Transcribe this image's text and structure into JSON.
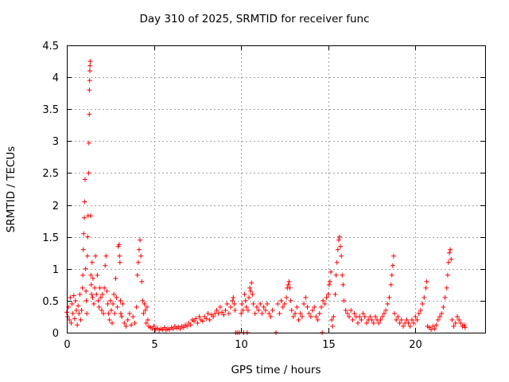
{
  "chart_data": {
    "type": "scatter",
    "title": "Day 310 of 2025, SRMTID for receiver func",
    "xlabel": "GPS time / hours",
    "ylabel": "SRMTID / TECUs",
    "xlim": [
      0,
      24
    ],
    "ylim": [
      0,
      4.5
    ],
    "xticks": [
      0,
      5,
      10,
      15,
      20
    ],
    "yticks": [
      0,
      0.5,
      1,
      1.5,
      2,
      2.5,
      3,
      3.5,
      4,
      4.5
    ],
    "ytick_labels": [
      "0",
      "0.5",
      "1",
      "1.5",
      "2",
      "2.5",
      "3",
      "3.5",
      "4",
      "4.5"
    ],
    "grid": true,
    "marker": "+",
    "color": "#ff0000",
    "series": [
      {
        "name": "SRMTID",
        "points": [
          [
            0.0,
            0.32
          ],
          [
            0.05,
            0.25
          ],
          [
            0.1,
            0.4
          ],
          [
            0.15,
            0.2
          ],
          [
            0.2,
            0.55
          ],
          [
            0.25,
            0.15
          ],
          [
            0.3,
            0.45
          ],
          [
            0.35,
            0.3
          ],
          [
            0.4,
            0.58
          ],
          [
            0.45,
            0.22
          ],
          [
            0.5,
            0.5
          ],
          [
            0.55,
            0.35
          ],
          [
            0.6,
            0.12
          ],
          [
            0.65,
            0.42
          ],
          [
            0.7,
            0.3
          ],
          [
            0.75,
            0.6
          ],
          [
            0.8,
            0.2
          ],
          [
            0.85,
            0.35
          ],
          [
            0.9,
            0.7
          ],
          [
            0.92,
            0.9
          ],
          [
            0.95,
            1.3
          ],
          [
            0.97,
            1.55
          ],
          [
            1.0,
            1.8
          ],
          [
            1.02,
            2.05
          ],
          [
            1.05,
            2.4
          ],
          [
            1.08,
            1.0
          ],
          [
            1.1,
            0.65
          ],
          [
            1.12,
            0.5
          ],
          [
            1.15,
            0.3
          ],
          [
            1.18,
            1.2
          ],
          [
            1.2,
            1.5
          ],
          [
            1.22,
            1.83
          ],
          [
            1.25,
            2.5
          ],
          [
            1.27,
            2.97
          ],
          [
            1.29,
            3.42
          ],
          [
            1.3,
            3.8
          ],
          [
            1.31,
            3.95
          ],
          [
            1.32,
            4.1
          ],
          [
            1.33,
            4.18
          ],
          [
            1.34,
            4.25
          ],
          [
            1.36,
            1.83
          ],
          [
            1.38,
            0.9
          ],
          [
            1.4,
            0.75
          ],
          [
            1.42,
            0.6
          ],
          [
            1.45,
            1.1
          ],
          [
            1.48,
            0.55
          ],
          [
            1.5,
            0.85
          ],
          [
            1.55,
            0.45
          ],
          [
            1.6,
            0.7
          ],
          [
            1.65,
            1.2
          ],
          [
            1.7,
            0.6
          ],
          [
            1.75,
            0.9
          ],
          [
            1.8,
            0.5
          ],
          [
            1.85,
            0.4
          ],
          [
            1.9,
            0.7
          ],
          [
            1.95,
            0.55
          ],
          [
            2.0,
            0.35
          ],
          [
            2.05,
            0.6
          ],
          [
            2.1,
            0.3
          ],
          [
            2.15,
            0.7
          ],
          [
            2.2,
            1.05
          ],
          [
            2.25,
            1.2
          ],
          [
            2.3,
            0.65
          ],
          [
            2.35,
            0.45
          ],
          [
            2.4,
            0.3
          ],
          [
            2.45,
            0.2
          ],
          [
            2.5,
            0.5
          ],
          [
            2.55,
            0.35
          ],
          [
            2.6,
            0.15
          ],
          [
            2.65,
            0.45
          ],
          [
            2.7,
            0.6
          ],
          [
            2.75,
            0.3
          ],
          [
            2.8,
            0.85
          ],
          [
            2.85,
            0.55
          ],
          [
            2.9,
            0.4
          ],
          [
            2.95,
            1.35
          ],
          [
            3.0,
            1.38
          ],
          [
            3.02,
            1.2
          ],
          [
            3.05,
            1.1
          ],
          [
            3.08,
            0.5
          ],
          [
            3.1,
            0.3
          ],
          [
            3.15,
            0.25
          ],
          [
            3.2,
            0.45
          ],
          [
            3.3,
            0.15
          ],
          [
            3.4,
            0.1
          ],
          [
            3.5,
            0.2
          ],
          [
            3.6,
            0.3
          ],
          [
            3.7,
            0.12
          ],
          [
            3.8,
            0.25
          ],
          [
            3.9,
            0.15
          ],
          [
            4.0,
            0.4
          ],
          [
            4.05,
            0.9
          ],
          [
            4.1,
            1.1
          ],
          [
            4.15,
            1.3
          ],
          [
            4.2,
            1.45
          ],
          [
            4.25,
            1.2
          ],
          [
            4.3,
            0.8
          ],
          [
            4.35,
            0.5
          ],
          [
            4.4,
            0.3
          ],
          [
            4.45,
            0.45
          ],
          [
            4.5,
            0.35
          ],
          [
            4.55,
            0.15
          ],
          [
            4.6,
            0.4
          ],
          [
            4.65,
            0.2
          ],
          [
            4.7,
            0.1
          ],
          [
            4.8,
            0.08
          ],
          [
            4.9,
            0.06
          ],
          [
            5.0,
            0.1
          ],
          [
            5.1,
            0.05
          ],
          [
            5.2,
            0.07
          ],
          [
            5.3,
            0.04
          ],
          [
            5.4,
            0.06
          ],
          [
            5.5,
            0.05
          ],
          [
            5.6,
            0.08
          ],
          [
            5.7,
            0.04
          ],
          [
            5.8,
            0.06
          ],
          [
            5.9,
            0.05
          ],
          [
            6.0,
            0.08
          ],
          [
            6.1,
            0.06
          ],
          [
            6.2,
            0.1
          ],
          [
            6.3,
            0.07
          ],
          [
            6.4,
            0.09
          ],
          [
            6.5,
            0.06
          ],
          [
            6.6,
            0.1
          ],
          [
            6.7,
            0.08
          ],
          [
            6.8,
            0.12
          ],
          [
            6.9,
            0.1
          ],
          [
            7.0,
            0.15
          ],
          [
            7.1,
            0.12
          ],
          [
            7.2,
            0.2
          ],
          [
            7.3,
            0.18
          ],
          [
            7.4,
            0.22
          ],
          [
            7.5,
            0.15
          ],
          [
            7.6,
            0.25
          ],
          [
            7.7,
            0.2
          ],
          [
            7.8,
            0.18
          ],
          [
            7.9,
            0.25
          ],
          [
            8.0,
            0.22
          ],
          [
            8.1,
            0.3
          ],
          [
            8.2,
            0.2
          ],
          [
            8.3,
            0.28
          ],
          [
            8.4,
            0.25
          ],
          [
            8.5,
            0.3
          ],
          [
            8.6,
            0.35
          ],
          [
            8.7,
            0.3
          ],
          [
            8.8,
            0.4
          ],
          [
            8.9,
            0.32
          ],
          [
            9.0,
            0.28
          ],
          [
            9.1,
            0.35
          ],
          [
            9.2,
            0.45
          ],
          [
            9.3,
            0.3
          ],
          [
            9.4,
            0.4
          ],
          [
            9.5,
            0.5
          ],
          [
            9.55,
            0.55
          ],
          [
            9.6,
            0.45
          ],
          [
            9.65,
            0.35
          ],
          [
            9.7,
            0.0
          ],
          [
            9.8,
            0.0
          ],
          [
            9.9,
            0.0
          ],
          [
            10.0,
            0.3
          ],
          [
            10.05,
            0.45
          ],
          [
            10.1,
            0.35
          ],
          [
            10.15,
            0.0
          ],
          [
            10.2,
            0.6
          ],
          [
            10.25,
            0.5
          ],
          [
            10.3,
            0.4
          ],
          [
            10.35,
            0.0
          ],
          [
            10.4,
            0.35
          ],
          [
            10.45,
            0.55
          ],
          [
            10.5,
            0.7
          ],
          [
            10.55,
            0.65
          ],
          [
            10.6,
            0.78
          ],
          [
            10.65,
            0.6
          ],
          [
            10.7,
            0.45
          ],
          [
            10.8,
            0.3
          ],
          [
            10.9,
            0.4
          ],
          [
            11.0,
            0.35
          ],
          [
            11.1,
            0.45
          ],
          [
            11.2,
            0.3
          ],
          [
            11.3,
            0.4
          ],
          [
            11.4,
            0.35
          ],
          [
            11.5,
            0.45
          ],
          [
            11.6,
            0.3
          ],
          [
            11.7,
            0.25
          ],
          [
            11.8,
            0.35
          ],
          [
            12.0,
            0.0
          ],
          [
            12.1,
            0.45
          ],
          [
            12.2,
            0.3
          ],
          [
            12.3,
            0.5
          ],
          [
            12.4,
            0.4
          ],
          [
            12.5,
            0.45
          ],
          [
            12.6,
            0.55
          ],
          [
            12.65,
            0.7
          ],
          [
            12.7,
            0.75
          ],
          [
            12.75,
            0.8
          ],
          [
            12.8,
            0.7
          ],
          [
            12.85,
            0.5
          ],
          [
            12.9,
            0.35
          ],
          [
            13.0,
            0.25
          ],
          [
            13.1,
            0.3
          ],
          [
            13.2,
            0.4
          ],
          [
            13.3,
            0.2
          ],
          [
            13.4,
            0.3
          ],
          [
            13.5,
            0.25
          ],
          [
            13.6,
            0.45
          ],
          [
            13.7,
            0.55
          ],
          [
            13.8,
            0.4
          ],
          [
            13.9,
            0.3
          ],
          [
            14.0,
            0.25
          ],
          [
            14.1,
            0.35
          ],
          [
            14.2,
            0.4
          ],
          [
            14.3,
            0.25
          ],
          [
            14.4,
            0.2
          ],
          [
            14.5,
            0.3
          ],
          [
            14.6,
            0.4
          ],
          [
            14.65,
            0.0
          ],
          [
            14.7,
            0.5
          ],
          [
            14.8,
            0.45
          ],
          [
            14.9,
            0.55
          ],
          [
            15.0,
            0.6
          ],
          [
            15.05,
            0.75
          ],
          [
            15.1,
            0.8
          ],
          [
            15.15,
            0.95
          ],
          [
            15.2,
            0.2
          ],
          [
            15.25,
            0.1
          ],
          [
            15.3,
            0.25
          ],
          [
            15.4,
            0.6
          ],
          [
            15.45,
            0.9
          ],
          [
            15.5,
            1.1
          ],
          [
            15.55,
            1.3
          ],
          [
            15.6,
            1.45
          ],
          [
            15.65,
            1.5
          ],
          [
            15.7,
            1.35
          ],
          [
            15.75,
            1.2
          ],
          [
            15.8,
            0.9
          ],
          [
            15.85,
            0.75
          ],
          [
            15.9,
            0.5
          ],
          [
            16.0,
            0.35
          ],
          [
            16.1,
            0.3
          ],
          [
            16.2,
            0.25
          ],
          [
            16.3,
            0.35
          ],
          [
            16.4,
            0.2
          ],
          [
            16.5,
            0.3
          ],
          [
            16.6,
            0.25
          ],
          [
            16.7,
            0.15
          ],
          [
            16.8,
            0.25
          ],
          [
            16.9,
            0.2
          ],
          [
            17.0,
            0.3
          ],
          [
            17.1,
            0.25
          ],
          [
            17.2,
            0.15
          ],
          [
            17.3,
            0.2
          ],
          [
            17.4,
            0.25
          ],
          [
            17.5,
            0.2
          ],
          [
            17.6,
            0.15
          ],
          [
            17.7,
            0.25
          ],
          [
            17.8,
            0.2
          ],
          [
            17.9,
            0.15
          ],
          [
            18.0,
            0.2
          ],
          [
            18.1,
            0.25
          ],
          [
            18.2,
            0.3
          ],
          [
            18.3,
            0.35
          ],
          [
            18.4,
            0.45
          ],
          [
            18.5,
            0.55
          ],
          [
            18.6,
            0.75
          ],
          [
            18.65,
            0.9
          ],
          [
            18.7,
            1.05
          ],
          [
            18.75,
            1.2
          ],
          [
            18.8,
            0.3
          ],
          [
            18.9,
            0.2
          ],
          [
            19.0,
            0.25
          ],
          [
            19.1,
            0.15
          ],
          [
            19.2,
            0.2
          ],
          [
            19.3,
            0.1
          ],
          [
            19.4,
            0.15
          ],
          [
            19.5,
            0.2
          ],
          [
            19.6,
            0.15
          ],
          [
            19.7,
            0.1
          ],
          [
            19.8,
            0.2
          ],
          [
            19.9,
            0.15
          ],
          [
            20.0,
            0.25
          ],
          [
            20.1,
            0.2
          ],
          [
            20.2,
            0.3
          ],
          [
            20.3,
            0.35
          ],
          [
            20.4,
            0.45
          ],
          [
            20.5,
            0.55
          ],
          [
            20.6,
            0.7
          ],
          [
            20.65,
            0.8
          ],
          [
            20.7,
            0.1
          ],
          [
            20.8,
            0.08
          ],
          [
            20.9,
            0.05
          ],
          [
            21.0,
            0.1
          ],
          [
            21.1,
            0.06
          ],
          [
            21.2,
            0.12
          ],
          [
            21.3,
            0.2
          ],
          [
            21.4,
            0.25
          ],
          [
            21.5,
            0.3
          ],
          [
            21.6,
            0.4
          ],
          [
            21.7,
            0.55
          ],
          [
            21.8,
            0.7
          ],
          [
            21.85,
            0.9
          ],
          [
            21.9,
            1.1
          ],
          [
            21.95,
            1.25
          ],
          [
            22.0,
            1.3
          ],
          [
            22.05,
            1.15
          ],
          [
            22.1,
            0.2
          ],
          [
            22.2,
            0.1
          ],
          [
            22.3,
            0.15
          ],
          [
            22.4,
            0.25
          ],
          [
            22.5,
            0.2
          ],
          [
            22.6,
            0.15
          ],
          [
            22.7,
            0.1
          ],
          [
            22.8,
            0.12
          ],
          [
            22.85,
            0.08
          ]
        ]
      }
    ]
  }
}
